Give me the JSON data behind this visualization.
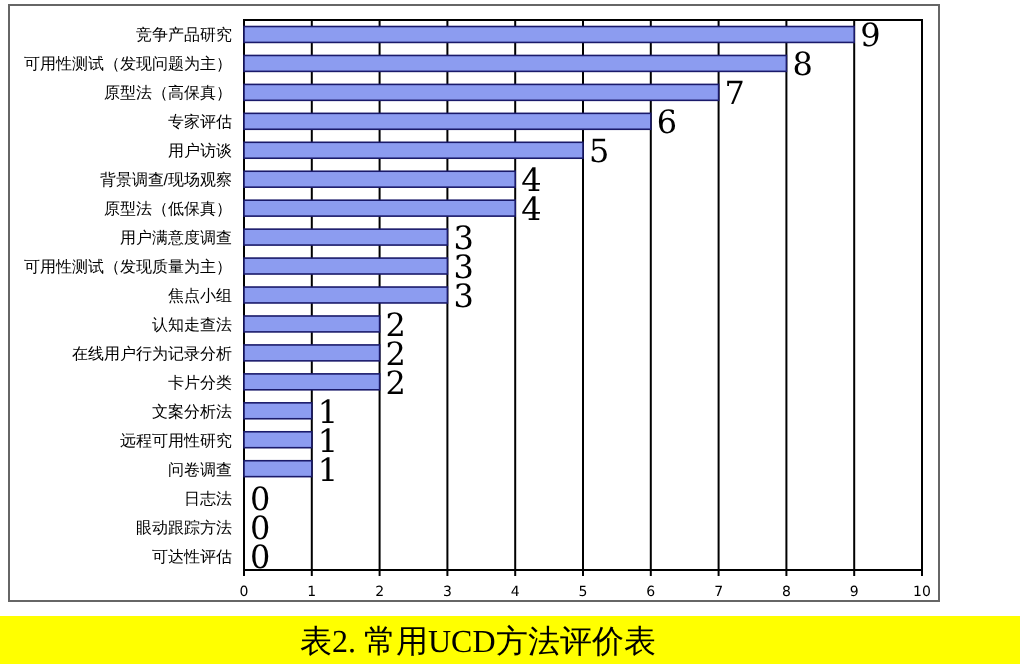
{
  "chart_data": {
    "type": "bar",
    "orientation": "horizontal",
    "title": "表2.  常用UCD方法评价表",
    "categories": [
      "竞争产品研究",
      "可用性测试（发现问题为主）",
      "原型法（高保真）",
      "专家评估",
      "用户访谈",
      "背景调查/现场观察",
      "原型法（低保真）",
      "用户满意度调查",
      "可用性测试（发现质量为主）",
      "焦点小组",
      "认知走查法",
      "在线用户行为记录分析",
      "卡片分类",
      "文案分析法",
      "远程可用性研究",
      "问卷调查",
      "日志法",
      "眼动跟踪方法",
      "可达性评估"
    ],
    "values": [
      9,
      8,
      7,
      6,
      5,
      4,
      4,
      3,
      3,
      3,
      2,
      2,
      2,
      1,
      1,
      1,
      0,
      0,
      0
    ],
    "color": "#8c9cf0",
    "xlim": [
      0,
      10
    ],
    "xticks": [
      0,
      1,
      2,
      3,
      4,
      5,
      6,
      7,
      8,
      9,
      10
    ],
    "grid": "x",
    "data_labels": true
  }
}
